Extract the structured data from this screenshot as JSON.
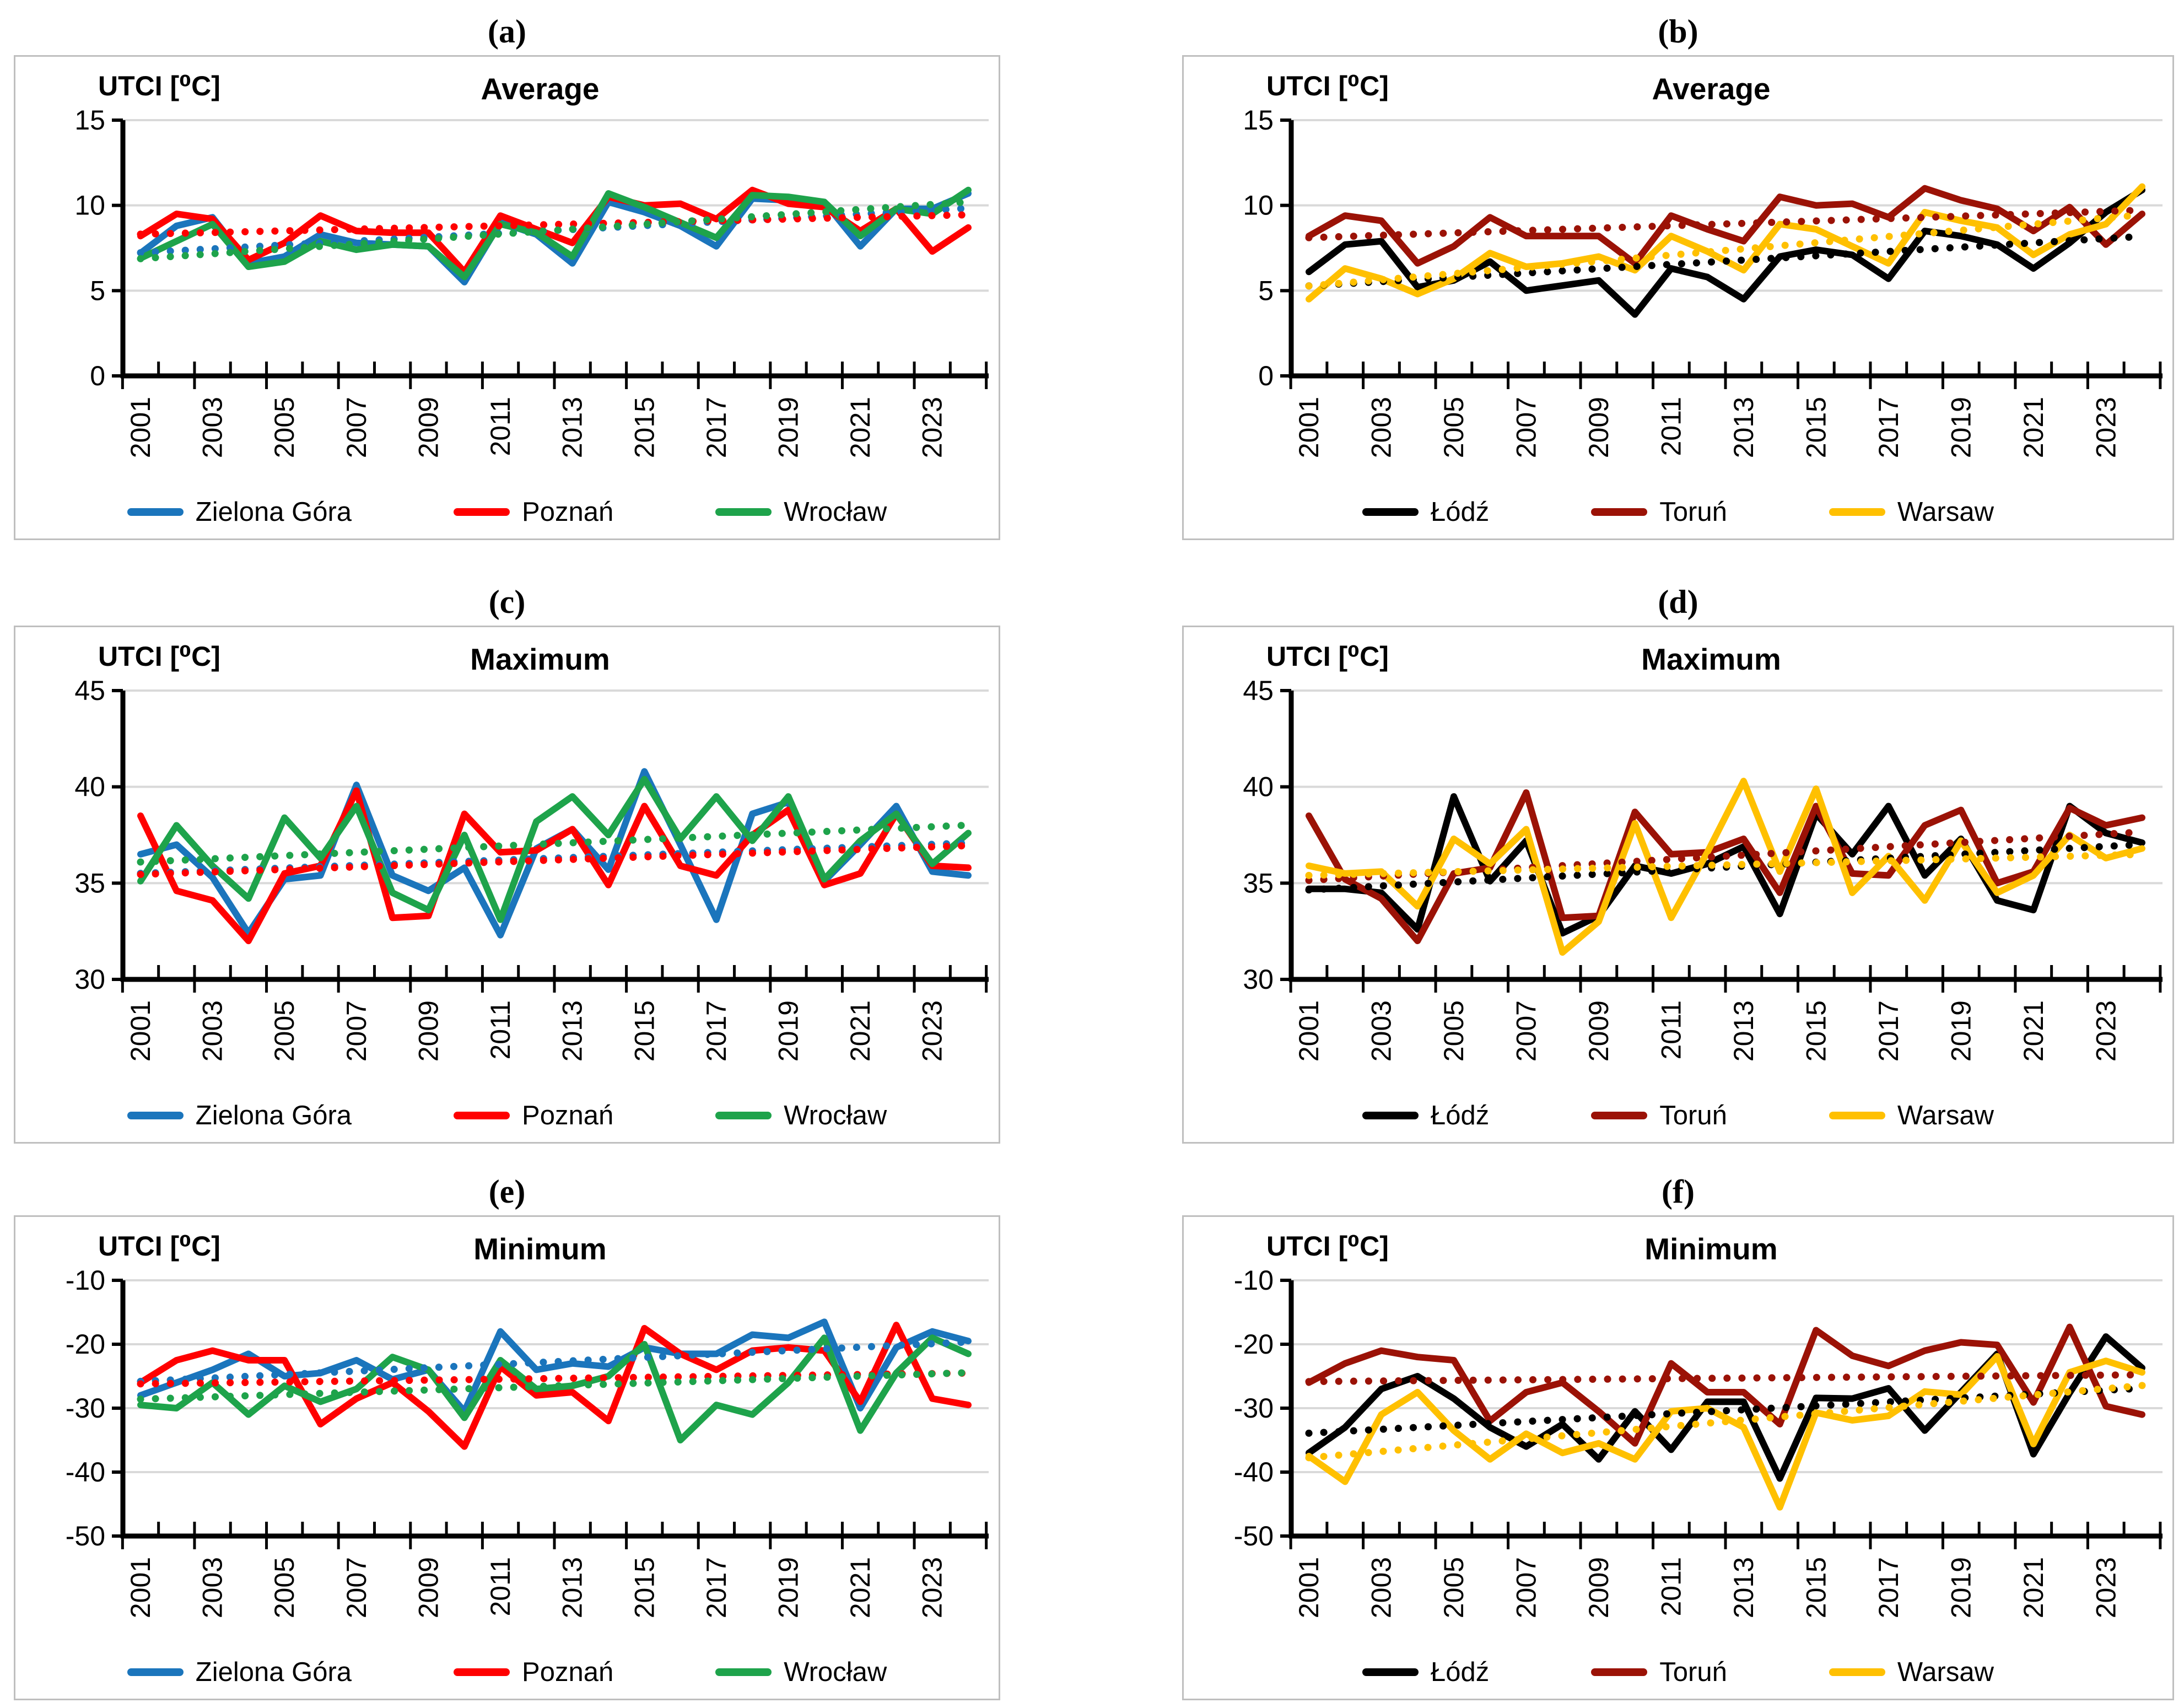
{
  "colors": {
    "gridline": "#D9D9D9",
    "panel_border": "#BFBFBF",
    "axis": "#000000",
    "zielona_gora_blue": "#1B75BC",
    "poznan_red": "#FF0000",
    "wroclaw_green": "#1EA34B",
    "lodz_black": "#000000",
    "torun_dark_red": "#9B1206",
    "warsaw_gold": "#FFC000"
  },
  "chart_data": [
    {
      "type": "line",
      "letter": "(a)",
      "title": "Average",
      "ylabel": "UTCI [⁰C]",
      "x": [
        2001,
        2002,
        2003,
        2004,
        2005,
        2006,
        2007,
        2008,
        2009,
        2010,
        2011,
        2012,
        2013,
        2014,
        2015,
        2016,
        2017,
        2018,
        2019,
        2020,
        2021,
        2022,
        2023,
        2024
      ],
      "x_tick_labels": [
        "2001",
        "2003",
        "2005",
        "2007",
        "2009",
        "2011",
        "2013",
        "2015",
        "2017",
        "2019",
        "2021",
        "2023"
      ],
      "ylim": [
        0,
        15
      ],
      "yticks": [
        0,
        5,
        10,
        15
      ],
      "grid": true,
      "legend_position": "bottom",
      "series": [
        {
          "name": "Zielona Góra",
          "color": "#1B75BC",
          "trendline": true,
          "values": [
            7.2,
            8.8,
            9.3,
            6.6,
            7.0,
            8.3,
            7.8,
            7.7,
            7.6,
            5.5,
            9.0,
            8.3,
            6.6,
            10.2,
            9.6,
            8.8,
            7.6,
            10.4,
            10.3,
            10.2,
            7.6,
            9.8,
            9.8,
            10.7
          ]
        },
        {
          "name": "Poznań",
          "color": "#FF0000",
          "trendline": true,
          "values": [
            8.2,
            9.5,
            9.2,
            6.8,
            7.8,
            9.4,
            8.5,
            8.4,
            8.4,
            6.1,
            9.4,
            8.6,
            7.8,
            10.5,
            10.0,
            10.1,
            9.2,
            10.9,
            10.1,
            9.9,
            8.5,
            9.8,
            7.3,
            8.7
          ]
        },
        {
          "name": "Wrocław",
          "color": "#1EA34B",
          "trendline": true,
          "values": [
            6.9,
            7.9,
            8.9,
            6.4,
            6.7,
            7.9,
            7.4,
            7.7,
            7.6,
            5.8,
            8.9,
            8.4,
            7.0,
            10.7,
            9.9,
            9.0,
            8.1,
            10.6,
            10.5,
            10.2,
            8.2,
            9.8,
            9.5,
            10.9
          ]
        }
      ]
    },
    {
      "type": "line",
      "letter": "(b)",
      "title": "Average",
      "ylabel": "UTCI [⁰C]",
      "x": [
        2001,
        2002,
        2003,
        2004,
        2005,
        2006,
        2007,
        2008,
        2009,
        2010,
        2011,
        2012,
        2013,
        2014,
        2015,
        2016,
        2017,
        2018,
        2019,
        2020,
        2021,
        2022,
        2023,
        2024
      ],
      "x_tick_labels": [
        "2001",
        "2003",
        "2005",
        "2007",
        "2009",
        "2011",
        "2013",
        "2015",
        "2017",
        "2019",
        "2021",
        "2023"
      ],
      "ylim": [
        0,
        15
      ],
      "yticks": [
        0,
        5,
        10,
        15
      ],
      "grid": true,
      "legend_position": "bottom",
      "series": [
        {
          "name": "Łódź",
          "color": "#000000",
          "trendline": true,
          "values": [
            6.1,
            7.7,
            7.9,
            5.2,
            5.6,
            6.7,
            5.0,
            5.3,
            5.6,
            3.6,
            6.3,
            5.8,
            4.5,
            7.0,
            7.4,
            7.1,
            5.7,
            8.5,
            8.2,
            7.7,
            6.3,
            7.8,
            9.6,
            10.9
          ]
        },
        {
          "name": "Toruń",
          "color": "#9B1206",
          "trendline": true,
          "values": [
            8.2,
            9.4,
            9.1,
            6.6,
            7.6,
            9.3,
            8.2,
            8.2,
            8.2,
            6.6,
            9.4,
            8.6,
            7.9,
            10.5,
            10.0,
            10.1,
            9.3,
            11.0,
            10.3,
            9.8,
            8.5,
            9.9,
            7.7,
            9.5
          ]
        },
        {
          "name": "Warsaw",
          "color": "#FFC000",
          "trendline": true,
          "values": [
            4.5,
            6.3,
            5.7,
            4.8,
            5.7,
            7.2,
            6.4,
            6.6,
            7.0,
            6.2,
            8.2,
            7.3,
            6.2,
            8.9,
            8.6,
            7.6,
            6.6,
            9.6,
            9.1,
            8.7,
            7.1,
            8.3,
            8.9,
            11.1
          ]
        }
      ]
    },
    {
      "type": "line",
      "letter": "(c)",
      "title": "Maximum",
      "ylabel": "UTCI [⁰C]",
      "x": [
        2001,
        2002,
        2003,
        2004,
        2005,
        2006,
        2007,
        2008,
        2009,
        2010,
        2011,
        2012,
        2013,
        2014,
        2015,
        2016,
        2017,
        2018,
        2019,
        2020,
        2021,
        2022,
        2023,
        2024
      ],
      "x_tick_labels": [
        "2001",
        "2003",
        "2005",
        "2007",
        "2009",
        "2011",
        "2013",
        "2015",
        "2017",
        "2019",
        "2021",
        "2023"
      ],
      "ylim": [
        30,
        45
      ],
      "yticks": [
        30,
        35,
        40,
        45
      ],
      "grid": true,
      "legend_position": "bottom",
      "series": [
        {
          "name": "Zielona Góra",
          "color": "#1B75BC",
          "trendline": true,
          "values": [
            36.5,
            37.0,
            35.3,
            32.4,
            35.2,
            35.4,
            40.1,
            35.4,
            34.6,
            35.8,
            32.3,
            36.8,
            37.8,
            35.7,
            40.8,
            37.0,
            33.1,
            38.6,
            39.2,
            35.1,
            37.0,
            39.0,
            35.6,
            35.4
          ]
        },
        {
          "name": "Poznań",
          "color": "#FF0000",
          "trendline": true,
          "values": [
            38.5,
            34.6,
            34.1,
            32.0,
            35.5,
            35.9,
            39.8,
            33.2,
            33.3,
            38.6,
            36.6,
            36.7,
            37.8,
            34.9,
            39.0,
            35.9,
            35.4,
            37.5,
            38.8,
            34.9,
            35.5,
            38.6,
            35.9,
            35.8
          ]
        },
        {
          "name": "Wrocław",
          "color": "#1EA34B",
          "trendline": true,
          "values": [
            35.1,
            38.0,
            35.9,
            34.2,
            38.4,
            36.3,
            39.0,
            34.5,
            33.6,
            37.5,
            33.1,
            38.2,
            39.5,
            37.5,
            40.4,
            37.3,
            39.5,
            37.2,
            39.5,
            35.2,
            37.2,
            38.6,
            36.0,
            37.6
          ]
        }
      ]
    },
    {
      "type": "line",
      "letter": "(d)",
      "title": "Maximum",
      "ylabel": "UTCI [⁰C]",
      "x": [
        2001,
        2002,
        2003,
        2004,
        2005,
        2006,
        2007,
        2008,
        2009,
        2010,
        2011,
        2012,
        2013,
        2014,
        2015,
        2016,
        2017,
        2018,
        2019,
        2020,
        2021,
        2022,
        2023,
        2024
      ],
      "x_tick_labels": [
        "2001",
        "2003",
        "2005",
        "2007",
        "2009",
        "2011",
        "2013",
        "2015",
        "2017",
        "2019",
        "2021",
        "2023"
      ],
      "ylim": [
        30,
        45
      ],
      "yticks": [
        30,
        35,
        40,
        45
      ],
      "grid": true,
      "legend_position": "bottom",
      "series": [
        {
          "name": "Łódź",
          "color": "#000000",
          "trendline": true,
          "values": [
            34.7,
            34.7,
            34.5,
            32.6,
            39.5,
            35.1,
            37.2,
            32.4,
            33.3,
            35.9,
            35.5,
            36.0,
            36.9,
            33.4,
            38.6,
            36.5,
            39.0,
            35.4,
            37.3,
            34.1,
            33.6,
            39.0,
            37.6,
            37.1
          ]
        },
        {
          "name": "Toruń",
          "color": "#9B1206",
          "trendline": true,
          "values": [
            38.5,
            35.2,
            34.2,
            32.0,
            35.5,
            35.8,
            39.7,
            33.2,
            33.3,
            38.7,
            36.5,
            36.6,
            37.3,
            34.5,
            39.0,
            35.5,
            35.4,
            38.0,
            38.8,
            35.0,
            35.6,
            38.9,
            38.0,
            38.4
          ]
        },
        {
          "name": "Warsaw",
          "color": "#FFC000",
          "trendline": true,
          "values": [
            35.9,
            35.5,
            35.6,
            33.8,
            37.3,
            36.0,
            37.8,
            31.4,
            33.0,
            38.1,
            33.2,
            36.6,
            40.3,
            35.6,
            39.9,
            34.5,
            36.4,
            34.1,
            37.2,
            34.5,
            35.4,
            37.5,
            36.3,
            36.8
          ]
        }
      ]
    },
    {
      "type": "line",
      "letter": "(e)",
      "title": "Minimum",
      "ylabel": "UTCI [⁰C]",
      "x": [
        2001,
        2002,
        2003,
        2004,
        2005,
        2006,
        2007,
        2008,
        2009,
        2010,
        2011,
        2012,
        2013,
        2014,
        2015,
        2016,
        2017,
        2018,
        2019,
        2020,
        2021,
        2022,
        2023,
        2024
      ],
      "x_tick_labels": [
        "2001",
        "2003",
        "2005",
        "2007",
        "2009",
        "2011",
        "2013",
        "2015",
        "2017",
        "2019",
        "2021",
        "2023"
      ],
      "ylim": [
        -50,
        -10
      ],
      "yticks": [
        -50,
        -40,
        -30,
        -20,
        -10
      ],
      "grid": true,
      "legend_position": "bottom",
      "series": [
        {
          "name": "Zielona Góra",
          "color": "#1B75BC",
          "trendline": true,
          "values": [
            -28,
            -26,
            -24,
            -21.5,
            -25,
            -24.5,
            -22.5,
            -25.5,
            -24,
            -30.5,
            -18,
            -24,
            -23,
            -23.5,
            -20.5,
            -21.5,
            -21.5,
            -18.5,
            -19,
            -16.5,
            -30,
            -20.5,
            -18,
            -19.5
          ]
        },
        {
          "name": "Poznań",
          "color": "#FF0000",
          "trendline": true,
          "values": [
            -26,
            -22.5,
            -21,
            -22.5,
            -22.5,
            -32.5,
            -28.5,
            -26,
            -30.5,
            -36,
            -23.5,
            -28,
            -27.5,
            -32,
            -17.5,
            -21.5,
            -24,
            -21,
            -20.5,
            -21,
            -29,
            -17,
            -28.5,
            -29.5
          ]
        },
        {
          "name": "Wrocław",
          "color": "#1EA34B",
          "trendline": true,
          "values": [
            -29.5,
            -30,
            -26,
            -31,
            -26.5,
            -29,
            -27,
            -22,
            -24,
            -31.5,
            -22.5,
            -27,
            -26.5,
            -25,
            -20,
            -35,
            -29.5,
            -31,
            -26,
            -19,
            -33.5,
            -24.5,
            -19,
            -21.5
          ]
        }
      ]
    },
    {
      "type": "line",
      "letter": "(f)",
      "title": "Minimum",
      "ylabel": "UTCI [⁰C]",
      "x": [
        2001,
        2002,
        2003,
        2004,
        2005,
        2006,
        2007,
        2008,
        2009,
        2010,
        2011,
        2012,
        2013,
        2014,
        2015,
        2016,
        2017,
        2018,
        2019,
        2020,
        2021,
        2022,
        2023,
        2024
      ],
      "x_tick_labels": [
        "2001",
        "2003",
        "2005",
        "2007",
        "2009",
        "2011",
        "2013",
        "2015",
        "2017",
        "2019",
        "2021",
        "2023"
      ],
      "ylim": [
        -50,
        -10
      ],
      "yticks": [
        -50,
        -40,
        -30,
        -20,
        -10
      ],
      "grid": true,
      "legend_position": "bottom",
      "series": [
        {
          "name": "Łódź",
          "color": "#000000",
          "trendline": true,
          "values": [
            -37,
            -33,
            -27,
            -25,
            -28.5,
            -33,
            -36,
            -32.5,
            -38,
            -30.5,
            -36.5,
            -29,
            -29,
            -41,
            -28.4,
            -28.5,
            -26.9,
            -33.5,
            -27.5,
            -21.5,
            -37.2,
            -27.6,
            -18.8,
            -23.7
          ]
        },
        {
          "name": "Toruń",
          "color": "#9B1206",
          "trendline": true,
          "values": [
            -26,
            -23,
            -21,
            -22,
            -22.5,
            -32,
            -27.5,
            -26,
            -30.5,
            -35.5,
            -23,
            -27.5,
            -27.5,
            -32.5,
            -17.8,
            -21.8,
            -23.4,
            -21,
            -19.7,
            -20.1,
            -29.1,
            -17.3,
            -29.7,
            -31
          ]
        },
        {
          "name": "Warsaw",
          "color": "#FFC000",
          "trendline": true,
          "values": [
            -37.5,
            -41.5,
            -31,
            -27.5,
            -33.5,
            -38,
            -34,
            -37,
            -35.5,
            -38,
            -30.5,
            -30,
            -33,
            -45.5,
            -30.7,
            -31.9,
            -31.2,
            -27.4,
            -27.9,
            -21.9,
            -35.6,
            -24.4,
            -22.6,
            -24.4
          ]
        }
      ]
    }
  ]
}
